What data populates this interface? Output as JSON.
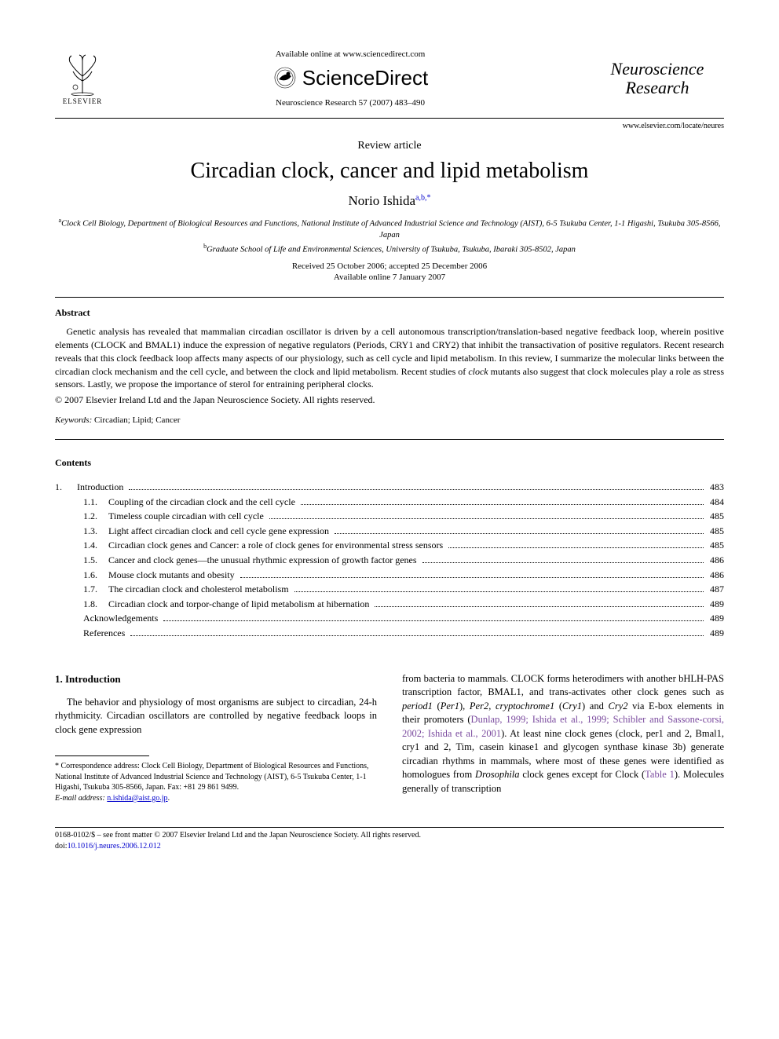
{
  "header": {
    "available_online": "Available online at www.sciencedirect.com",
    "sd_brand": "ScienceDirect",
    "journal_ref": "Neuroscience Research 57 (2007) 483–490",
    "journal_name_line1": "Neuroscience",
    "journal_name_line2": "Research",
    "journal_url": "www.elsevier.com/locate/neures",
    "elsevier_label": "ELSEVIER"
  },
  "meta": {
    "article_type": "Review article",
    "title": "Circadian clock, cancer and lipid metabolism",
    "author_name": "Norio Ishida",
    "author_sup": "a,b,",
    "author_star": "*",
    "affil_a": "Clock Cell Biology, Department of Biological Resources and Functions, National Institute of Advanced Industrial Science and Technology (AIST), 6-5 Tsukuba Center, 1-1 Higashi, Tsukuba 305-8566, Japan",
    "affil_b": "Graduate School of Life and Environmental Sciences, University of Tsukuba, Tsukuba, Ibaraki 305-8502, Japan",
    "dates_line1": "Received 25 October 2006; accepted 25 December 2006",
    "dates_line2": "Available online 7 January 2007"
  },
  "abstract": {
    "heading": "Abstract",
    "text_part1": "Genetic analysis has revealed that mammalian circadian oscillator is driven by a cell autonomous transcription/translation-based negative feedback loop, wherein positive elements (CLOCK and BMAL1) induce the expression of negative regulators (Periods, CRY1 and CRY2) that inhibit the transactivation of positive regulators. Recent research reveals that this clock feedback loop affects many aspects of our physiology, such as cell cycle and lipid metabolism. In this review, I summarize the molecular links between the circadian clock mechanism and the cell cycle, and between the clock and lipid metabolism. Recent studies of ",
    "text_clock": "clock",
    "text_part2": " mutants also suggest that clock molecules play a role as stress sensors. Lastly, we propose the importance of sterol for entraining peripheral clocks.",
    "copyright": "© 2007 Elsevier Ireland Ltd and the Japan Neuroscience Society. All rights reserved.",
    "keywords_label": "Keywords:",
    "keywords": " Circadian; Lipid; Cancer"
  },
  "contents": {
    "heading": "Contents",
    "items": [
      {
        "level": 1,
        "num": "1.",
        "label": "Introduction",
        "page": "483"
      },
      {
        "level": 2,
        "num": "1.1.",
        "label": "Coupling of the circadian clock and the cell cycle",
        "page": "484"
      },
      {
        "level": 2,
        "num": "1.2.",
        "label": "Timeless couple circadian with cell cycle",
        "page": "485"
      },
      {
        "level": 2,
        "num": "1.3.",
        "label": "Light affect circadian clock and cell cycle gene expression",
        "page": "485"
      },
      {
        "level": 2,
        "num": "1.4.",
        "label": "Circadian clock genes and Cancer: a role of clock genes for environmental stress sensors",
        "page": "485"
      },
      {
        "level": 2,
        "num": "1.5.",
        "label": "Cancer and clock genes—the unusual rhythmic expression of growth factor genes",
        "page": "486"
      },
      {
        "level": 2,
        "num": "1.6.",
        "label": "Mouse clock mutants and obesity",
        "page": "486"
      },
      {
        "level": 2,
        "num": "1.7.",
        "label": "The circadian clock and cholesterol metabolism",
        "page": "487"
      },
      {
        "level": 2,
        "num": "1.8.",
        "label": "Circadian clock and torpor-change of lipid metabolism at hibernation",
        "page": "489"
      },
      {
        "level": 0,
        "num": "",
        "label": "Acknowledgements",
        "page": "489"
      },
      {
        "level": 0,
        "num": "",
        "label": "References",
        "page": "489"
      }
    ]
  },
  "body": {
    "section_heading": "1. Introduction",
    "col1_para": "The behavior and physiology of most organisms are subject to circadian, 24-h rhythmicity. Circadian oscillators are controlled by negative feedback loops in clock gene expression",
    "col2_pre": "from bacteria to mammals. CLOCK forms heterodimers with another bHLH-PAS transcription factor, BMAL1, and trans-activates other clock genes such as ",
    "col2_p1": "period1",
    "col2_p1p": " (",
    "col2_p1i": "Per1",
    "col2_p1s": "), ",
    "col2_p2": "Per2",
    "col2_c1": ", ",
    "col2_cr1": "cryptochrome1",
    "col2_cr1p": " (",
    "col2_cr1i": "Cry1",
    "col2_cr1s": ") and ",
    "col2_cr2": "Cry2",
    "col2_mid": " via E-box elements in their promoters (",
    "col2_cite1": "Dunlap, 1999; Ishida et al., 1999; Schibler and Sassone-corsi, 2002; Ishida et al., 2001",
    "col2_mid2": "). At least nine clock genes (clock, per1 and 2, Bmal1, cry1 and 2, Tim, casein kinase1 and glycogen synthase kinase 3b) generate circadian rhythms in mammals, where most of these genes were identified as homologues from ",
    "col2_dros": "Drosophila",
    "col2_mid3": " clock genes except for Clock (",
    "col2_cite2": "Table 1",
    "col2_end": "). Molecules generally of transcription"
  },
  "footnote": {
    "corr": "* Correspondence address: Clock Cell Biology, Department of Biological Resources and Functions, National Institute of Advanced Industrial Science and Technology (AIST), 6-5 Tsukuba Center, 1-1 Higashi, Tsukuba 305-8566, Japan. Fax: +81 29 861 9499.",
    "email_label": "E-mail address:",
    "email": "n.ishida@aist.go.jp",
    "email_suffix": "."
  },
  "footer": {
    "line1": "0168-0102/$ – see front matter © 2007 Elsevier Ireland Ltd and the Japan Neuroscience Society. All rights reserved.",
    "doi_prefix": "doi:",
    "doi": "10.1016/j.neures.2006.12.012"
  },
  "colors": {
    "citation": "#7a4a9e",
    "link": "#0000cc"
  }
}
